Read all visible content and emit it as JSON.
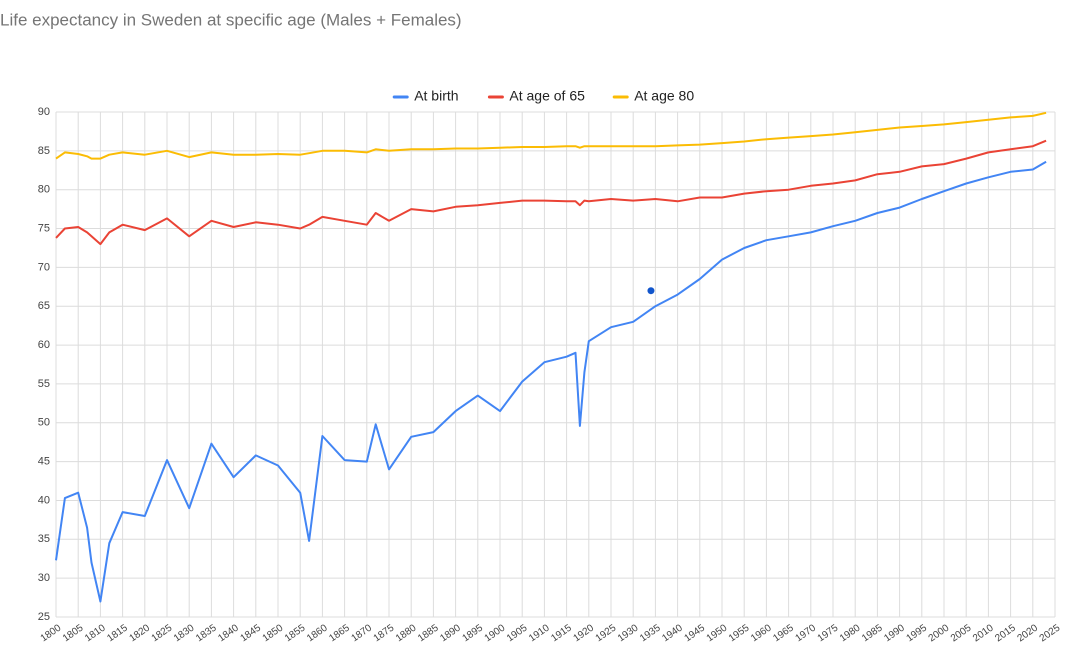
{
  "chart_data": {
    "type": "line",
    "title": "Life expectancy in Sweden at specific age (Males + Females)",
    "x": [
      1800,
      1802,
      1805,
      1807,
      1808,
      1810,
      1812,
      1815,
      1820,
      1825,
      1830,
      1835,
      1840,
      1845,
      1850,
      1855,
      1857,
      1860,
      1865,
      1870,
      1872,
      1875,
      1880,
      1885,
      1890,
      1895,
      1900,
      1905,
      1910,
      1915,
      1917,
      1918,
      1919,
      1920,
      1925,
      1930,
      1935,
      1940,
      1945,
      1950,
      1955,
      1960,
      1965,
      1970,
      1975,
      1980,
      1985,
      1990,
      1995,
      2000,
      2005,
      2010,
      2015,
      2020,
      2023
    ],
    "series": [
      {
        "name": "At birth",
        "color": "#4285f4",
        "values": [
          32.3,
          40.3,
          41,
          36.5,
          32,
          27,
          34.5,
          38.5,
          38,
          45.2,
          39,
          47.3,
          43,
          45.8,
          44.5,
          41,
          34.8,
          48.3,
          45.2,
          45,
          49.8,
          44,
          48.2,
          48.8,
          51.5,
          53.5,
          51.5,
          55.3,
          57.8,
          58.5,
          59,
          49.6,
          56.5,
          60.5,
          62.3,
          63,
          65,
          66.5,
          68.5,
          71,
          72.5,
          73.5,
          74,
          74.5,
          75.3,
          76,
          77,
          77.7,
          78.8,
          79.8,
          80.8,
          81.6,
          82.3,
          82.6,
          83.6
        ]
      },
      {
        "name": "At age of 65",
        "color": "#ea4335",
        "values": [
          73.8,
          75,
          75.2,
          74.5,
          74,
          73,
          74.5,
          75.5,
          74.8,
          76.3,
          74,
          76,
          75.2,
          75.8,
          75.5,
          75,
          75.5,
          76.5,
          76,
          75.5,
          77,
          76,
          77.5,
          77.2,
          77.8,
          78,
          78.3,
          78.6,
          78.6,
          78.5,
          78.5,
          78,
          78.6,
          78.5,
          78.8,
          78.6,
          78.8,
          78.5,
          79,
          79,
          79.5,
          79.8,
          80,
          80.5,
          80.8,
          81.2,
          82,
          82.3,
          83,
          83.3,
          84,
          84.8,
          85.2,
          85.6,
          86.3
        ]
      },
      {
        "name": "At age 80",
        "color": "#fbbc04",
        "values": [
          84,
          84.8,
          84.6,
          84.3,
          84,
          84,
          84.5,
          84.8,
          84.5,
          85,
          84.2,
          84.8,
          84.5,
          84.5,
          84.6,
          84.5,
          84.7,
          85,
          85,
          84.8,
          85.2,
          85,
          85.2,
          85.2,
          85.3,
          85.3,
          85.4,
          85.5,
          85.5,
          85.6,
          85.6,
          85.4,
          85.6,
          85.6,
          85.6,
          85.6,
          85.6,
          85.7,
          85.8,
          86,
          86.2,
          86.5,
          86.7,
          86.9,
          87.1,
          87.4,
          87.7,
          88,
          88.2,
          88.4,
          88.7,
          89,
          89.3,
          89.5,
          89.9
        ]
      }
    ],
    "highlight": {
      "x": 1934,
      "y": 67,
      "color": "#1155cc"
    },
    "xlim": [
      1800,
      2025
    ],
    "xticks": [
      1800,
      1805,
      1810,
      1815,
      1820,
      1825,
      1830,
      1835,
      1840,
      1845,
      1850,
      1855,
      1860,
      1865,
      1870,
      1875,
      1880,
      1885,
      1890,
      1895,
      1900,
      1905,
      1910,
      1915,
      1920,
      1925,
      1930,
      1935,
      1940,
      1945,
      1950,
      1955,
      1960,
      1965,
      1970,
      1975,
      1980,
      1985,
      1990,
      1995,
      2000,
      2005,
      2010,
      2015,
      2020,
      2025
    ],
    "ylim": [
      25,
      90
    ],
    "yticks": [
      25,
      30,
      35,
      40,
      45,
      50,
      55,
      60,
      65,
      70,
      75,
      80,
      85,
      90
    ],
    "grid": true,
    "legend": "top"
  }
}
